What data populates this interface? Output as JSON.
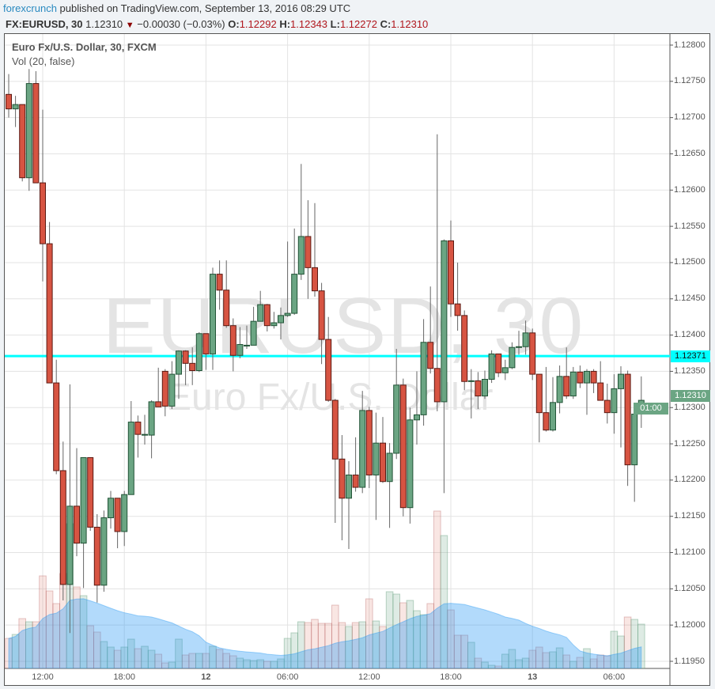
{
  "header": {
    "author": "forexcrunch",
    "published": "published on TradingView.com, September 13, 2016 08:29 UTC",
    "symbol": "FX:EURUSD, 30",
    "last": "1.12310",
    "change": "−0.00030 (−0.03%)",
    "change_direction_icon": "triangle-down-icon",
    "o_label": "O:",
    "o": "1.12292",
    "h_label": "H:",
    "h": "1.12343",
    "l_label": "L:",
    "l": "1.12272",
    "c_label": "C:",
    "c": "1.12310"
  },
  "legend": {
    "series": "Euro Fx/U.S. Dollar, 30, FXCM",
    "volume": "Vol (20, false)"
  },
  "watermark": {
    "symbol": "EURUSD, 30",
    "description": "Euro Fx/U.S. Dollar"
  },
  "price_axis": {
    "labels": [
      "1.12800",
      "1.12750",
      "1.12700",
      "1.12650",
      "1.12600",
      "1.12550",
      "1.12500",
      "1.12450",
      "1.12400",
      "1.12350",
      "1.12300",
      "1.12250",
      "1.12200",
      "1.12150",
      "1.12100",
      "1.12050",
      "1.12000",
      "1.11950"
    ],
    "horizontal_line_value": "1.12371",
    "last_price_badge": "1.12310",
    "countdown": "01:00"
  },
  "colors": {
    "up": "#6ba583",
    "up_border": "#225437",
    "down": "#d75442",
    "down_border": "#5b1a13",
    "hline": "#00ffff",
    "volume_ma": "#2196f3"
  },
  "chart_data": {
    "type": "candlestick",
    "title": "Euro Fx/U.S. Dollar, 30, FXCM",
    "ylim": [
      1.1195,
      1.128
    ],
    "grid": true,
    "x_ticks": [
      {
        "label": "12:00",
        "index": 5
      },
      {
        "label": "18:00",
        "index": 17
      },
      {
        "label": "12",
        "index": 29,
        "bold": true
      },
      {
        "label": "06:00",
        "index": 41
      },
      {
        "label": "12:00",
        "index": 53
      },
      {
        "label": "18:00",
        "index": 65
      },
      {
        "label": "13",
        "index": 77,
        "bold": true
      },
      {
        "label": "06:00",
        "index": 89
      }
    ],
    "horizontal_line": 1.12371,
    "ohlc": [
      [
        1.12732,
        1.1276,
        1.127,
        1.12712
      ],
      [
        1.12712,
        1.1273,
        1.12687,
        1.12718
      ],
      [
        1.12718,
        1.12718,
        1.12612,
        1.12617
      ],
      [
        1.12617,
        1.12767,
        1.12599,
        1.12747
      ],
      [
        1.12747,
        1.12764,
        1.1261,
        1.1261
      ],
      [
        1.1261,
        1.12711,
        1.12474,
        1.12526
      ],
      [
        1.12526,
        1.12556,
        1.12334,
        1.12334
      ],
      [
        1.12334,
        1.12366,
        1.12208,
        1.12213
      ],
      [
        1.12213,
        1.12253,
        1.12034,
        1.12056
      ],
      [
        1.12056,
        1.12332,
        1.11989,
        1.12164
      ],
      [
        1.12164,
        1.12244,
        1.12095,
        1.12113
      ],
      [
        1.12113,
        1.12231,
        1.12051,
        1.12231
      ],
      [
        1.12231,
        1.12231,
        1.1213,
        1.12135
      ],
      [
        1.12135,
        1.12153,
        1.12031,
        1.12055
      ],
      [
        1.12055,
        1.12158,
        1.12046,
        1.12148
      ],
      [
        1.12148,
        1.12185,
        1.12133,
        1.12175
      ],
      [
        1.12175,
        1.12175,
        1.12106,
        1.12129
      ],
      [
        1.12129,
        1.12185,
        1.12109,
        1.1218
      ],
      [
        1.1218,
        1.12309,
        1.1218,
        1.1228
      ],
      [
        1.1228,
        1.12289,
        1.12231,
        1.12263
      ],
      [
        1.12263,
        1.1229,
        1.12249,
        1.12263
      ],
      [
        1.12262,
        1.1231,
        1.1223,
        1.12308
      ],
      [
        1.12308,
        1.12355,
        1.12301,
        1.12301
      ],
      [
        1.1235,
        1.12353,
        1.12288,
        1.12302
      ],
      [
        1.12302,
        1.12364,
        1.12298,
        1.12346
      ],
      [
        1.12346,
        1.12379,
        1.12312,
        1.12378
      ],
      [
        1.12378,
        1.12379,
        1.12331,
        1.12361
      ],
      [
        1.12361,
        1.12383,
        1.12331,
        1.12351
      ],
      [
        1.12351,
        1.12404,
        1.12349,
        1.12402
      ],
      [
        1.12402,
        1.12402,
        1.12352,
        1.12374
      ],
      [
        1.12374,
        1.12493,
        1.12352,
        1.12484
      ],
      [
        1.12484,
        1.12503,
        1.12435,
        1.12462
      ],
      [
        1.12462,
        1.12503,
        1.1241,
        1.12413
      ],
      [
        1.12413,
        1.12423,
        1.1235,
        1.12372
      ],
      [
        1.12372,
        1.12411,
        1.12368,
        1.12387
      ],
      [
        1.12386,
        1.12413,
        1.12381,
        1.12386
      ],
      [
        1.12386,
        1.12439,
        1.12386,
        1.12419
      ],
      [
        1.12419,
        1.12461,
        1.12419,
        1.12442
      ],
      [
        1.12442,
        1.12443,
        1.12405,
        1.12413
      ],
      [
        1.12413,
        1.12432,
        1.12409,
        1.12417
      ],
      [
        1.12417,
        1.12438,
        1.12394,
        1.12427
      ],
      [
        1.12427,
        1.12529,
        1.12425,
        1.1243
      ],
      [
        1.1243,
        1.12547,
        1.12428,
        1.12484
      ],
      [
        1.12484,
        1.12636,
        1.12476,
        1.12536
      ],
      [
        1.12536,
        1.12586,
        1.1245,
        1.12493
      ],
      [
        1.12493,
        1.12582,
        1.12453,
        1.12461
      ],
      [
        1.12461,
        1.12472,
        1.1236,
        1.12394
      ],
      [
        1.12394,
        1.12425,
        1.12308,
        1.1231
      ],
      [
        1.1231,
        1.12312,
        1.12141,
        1.12229
      ],
      [
        1.12229,
        1.12262,
        1.12117,
        1.12175
      ],
      [
        1.12175,
        1.12226,
        1.12105,
        1.12207
      ],
      [
        1.12207,
        1.12259,
        1.12184,
        1.1219
      ],
      [
        1.1219,
        1.12323,
        1.12182,
        1.12296
      ],
      [
        1.12296,
        1.12301,
        1.12189,
        1.12207
      ],
      [
        1.12207,
        1.12293,
        1.12145,
        1.12251
      ],
      [
        1.12251,
        1.12287,
        1.12196,
        1.12198
      ],
      [
        1.12198,
        1.12251,
        1.12134,
        1.12237
      ],
      [
        1.12237,
        1.12381,
        1.12229,
        1.12331
      ],
      [
        1.12331,
        1.1234,
        1.1215,
        1.12162
      ],
      [
        1.12162,
        1.123,
        1.1214,
        1.12283
      ],
      [
        1.12283,
        1.1235,
        1.12249,
        1.1229
      ],
      [
        1.1229,
        1.12422,
        1.12275,
        1.1239
      ],
      [
        1.1239,
        1.12467,
        1.12347,
        1.12354
      ],
      [
        1.12354,
        1.12677,
        1.12295,
        1.12308
      ],
      [
        1.12308,
        1.12532,
        1.12182,
        1.1253
      ],
      [
        1.1253,
        1.12558,
        1.12425,
        1.12443
      ],
      [
        1.12443,
        1.125,
        1.12406,
        1.12427
      ],
      [
        1.12427,
        1.12434,
        1.12324,
        1.12336
      ],
      [
        1.12336,
        1.12353,
        1.12285,
        1.12337
      ],
      [
        1.12337,
        1.12349,
        1.12298,
        1.12316
      ],
      [
        1.12316,
        1.12351,
        1.12312,
        1.12339
      ],
      [
        1.12339,
        1.12379,
        1.12334,
        1.12374
      ],
      [
        1.12374,
        1.12374,
        1.12342,
        1.12348
      ],
      [
        1.12348,
        1.12366,
        1.12338,
        1.12355
      ],
      [
        1.12355,
        1.1239,
        1.12353,
        1.12383
      ],
      [
        1.12383,
        1.12406,
        1.12373,
        1.12384
      ],
      [
        1.12384,
        1.1242,
        1.12373,
        1.12403
      ],
      [
        1.12403,
        1.12409,
        1.12338,
        1.12346
      ],
      [
        1.12346,
        1.12346,
        1.12252,
        1.12293
      ],
      [
        1.12293,
        1.12356,
        1.12267,
        1.12269
      ],
      [
        1.12269,
        1.12342,
        1.12267,
        1.12307
      ],
      [
        1.12307,
        1.12358,
        1.12292,
        1.12343
      ],
      [
        1.12343,
        1.12383,
        1.12312,
        1.12316
      ],
      [
        1.12316,
        1.12356,
        1.12312,
        1.12349
      ],
      [
        1.12349,
        1.12358,
        1.12327,
        1.12334
      ],
      [
        1.12334,
        1.12353,
        1.1229,
        1.1235
      ],
      [
        1.1235,
        1.12353,
        1.1232,
        1.12334
      ],
      [
        1.12334,
        1.12364,
        1.1231,
        1.1231
      ],
      [
        1.1231,
        1.12333,
        1.12278,
        1.12293
      ],
      [
        1.12293,
        1.12346,
        1.12264,
        1.12326
      ],
      [
        1.12326,
        1.12357,
        1.12245,
        1.12346
      ],
      [
        1.12346,
        1.12351,
        1.12192,
        1.12221
      ],
      [
        1.12221,
        1.12298,
        1.1217,
        1.12291
      ],
      [
        1.12292,
        1.12343,
        1.12272,
        1.1231
      ]
    ],
    "volume_relative": [
      38,
      43,
      63,
      59,
      59,
      117,
      98,
      82,
      120,
      183,
      103,
      92,
      54,
      46,
      34,
      27,
      23,
      27,
      37,
      25,
      28,
      23,
      18,
      7,
      8,
      37,
      17,
      19,
      19,
      19,
      28,
      24,
      19,
      16,
      13,
      11,
      10,
      11,
      9,
      9,
      12,
      38,
      45,
      59,
      58,
      62,
      57,
      57,
      80,
      58,
      53,
      58,
      59,
      88,
      60,
      53,
      97,
      94,
      83,
      86,
      73,
      68,
      82,
      199,
      168,
      74,
      42,
      42,
      33,
      13,
      8,
      4,
      3,
      18,
      24,
      11,
      13,
      23,
      27,
      20,
      21,
      26,
      17,
      9,
      14,
      25,
      12,
      17,
      16,
      47,
      41,
      65,
      62,
      56
    ],
    "volume_ma_length": 20
  }
}
